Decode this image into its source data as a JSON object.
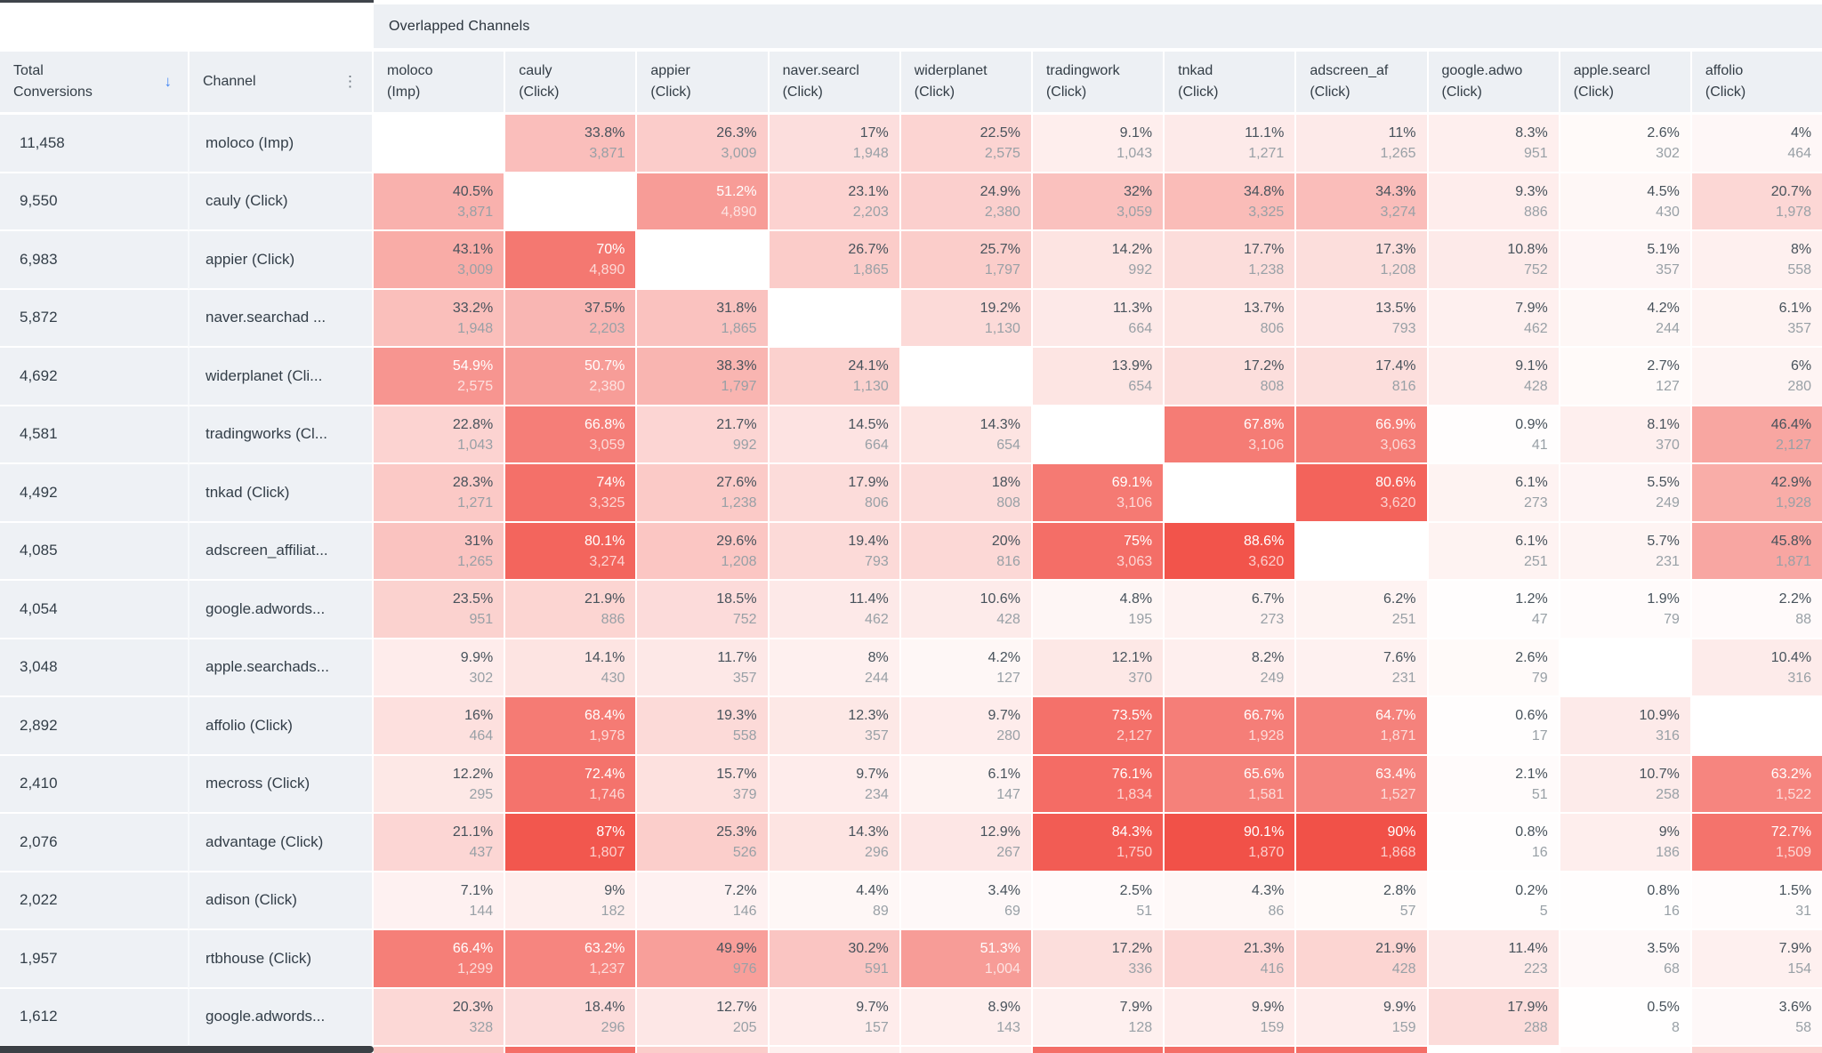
{
  "group_header": "Overlapped Channels",
  "left_header": {
    "total_line1": "Total",
    "total_line2": "Conversions",
    "sort_icon": "↓",
    "channel_label": "Channel",
    "menu_icon": "⋮"
  },
  "colors": {
    "heat_base_rgb": "240,62,52",
    "header_bg": "#edf0f4",
    "panel_bg": "#eef1f5",
    "accent_blue": "#4285f4",
    "dark_text_threshold_pct": 50
  },
  "columns": [
    {
      "line1": "moloco",
      "line2": "(Imp)"
    },
    {
      "line1": "cauly",
      "line2": "(Click)"
    },
    {
      "line1": "appier",
      "line2": "(Click)"
    },
    {
      "line1": "naver.searcl",
      "line2": "(Click)"
    },
    {
      "line1": "widerplanet",
      "line2": "(Click)"
    },
    {
      "line1": "tradingwork",
      "line2": "(Click)"
    },
    {
      "line1": "tnkad",
      "line2": "(Click)"
    },
    {
      "line1": "adscreen_af",
      "line2": "(Click)"
    },
    {
      "line1": "google.adwo",
      "line2": "(Click)"
    },
    {
      "line1": "apple.searcl",
      "line2": "(Click)"
    },
    {
      "line1": "affolio",
      "line2": "(Click)"
    }
  ],
  "rows": [
    {
      "total": "11,458",
      "channel": "moloco (Imp)",
      "cells": [
        null,
        {
          "p": "33.8%",
          "c": "3,871"
        },
        {
          "p": "26.3%",
          "c": "3,009"
        },
        {
          "p": "17%",
          "c": "1,948"
        },
        {
          "p": "22.5%",
          "c": "2,575"
        },
        {
          "p": "9.1%",
          "c": "1,043"
        },
        {
          "p": "11.1%",
          "c": "1,271"
        },
        {
          "p": "11%",
          "c": "1,265"
        },
        {
          "p": "8.3%",
          "c": "951"
        },
        {
          "p": "2.6%",
          "c": "302"
        },
        {
          "p": "4%",
          "c": "464"
        }
      ]
    },
    {
      "total": "9,550",
      "channel": "cauly (Click)",
      "cells": [
        {
          "p": "40.5%",
          "c": "3,871"
        },
        null,
        {
          "p": "51.2%",
          "c": "4,890"
        },
        {
          "p": "23.1%",
          "c": "2,203"
        },
        {
          "p": "24.9%",
          "c": "2,380"
        },
        {
          "p": "32%",
          "c": "3,059"
        },
        {
          "p": "34.8%",
          "c": "3,325"
        },
        {
          "p": "34.3%",
          "c": "3,274"
        },
        {
          "p": "9.3%",
          "c": "886"
        },
        {
          "p": "4.5%",
          "c": "430"
        },
        {
          "p": "20.7%",
          "c": "1,978"
        }
      ]
    },
    {
      "total": "6,983",
      "channel": "appier (Click)",
      "cells": [
        {
          "p": "43.1%",
          "c": "3,009"
        },
        {
          "p": "70%",
          "c": "4,890"
        },
        null,
        {
          "p": "26.7%",
          "c": "1,865"
        },
        {
          "p": "25.7%",
          "c": "1,797"
        },
        {
          "p": "14.2%",
          "c": "992"
        },
        {
          "p": "17.7%",
          "c": "1,238"
        },
        {
          "p": "17.3%",
          "c": "1,208"
        },
        {
          "p": "10.8%",
          "c": "752"
        },
        {
          "p": "5.1%",
          "c": "357"
        },
        {
          "p": "8%",
          "c": "558"
        }
      ]
    },
    {
      "total": "5,872",
      "channel": "naver.searchad ...",
      "cells": [
        {
          "p": "33.2%",
          "c": "1,948"
        },
        {
          "p": "37.5%",
          "c": "2,203"
        },
        {
          "p": "31.8%",
          "c": "1,865"
        },
        null,
        {
          "p": "19.2%",
          "c": "1,130"
        },
        {
          "p": "11.3%",
          "c": "664"
        },
        {
          "p": "13.7%",
          "c": "806"
        },
        {
          "p": "13.5%",
          "c": "793"
        },
        {
          "p": "7.9%",
          "c": "462"
        },
        {
          "p": "4.2%",
          "c": "244"
        },
        {
          "p": "6.1%",
          "c": "357"
        }
      ]
    },
    {
      "total": "4,692",
      "channel": "widerplanet (Cli...",
      "cells": [
        {
          "p": "54.9%",
          "c": "2,575"
        },
        {
          "p": "50.7%",
          "c": "2,380"
        },
        {
          "p": "38.3%",
          "c": "1,797"
        },
        {
          "p": "24.1%",
          "c": "1,130"
        },
        null,
        {
          "p": "13.9%",
          "c": "654"
        },
        {
          "p": "17.2%",
          "c": "808"
        },
        {
          "p": "17.4%",
          "c": "816"
        },
        {
          "p": "9.1%",
          "c": "428"
        },
        {
          "p": "2.7%",
          "c": "127"
        },
        {
          "p": "6%",
          "c": "280"
        }
      ]
    },
    {
      "total": "4,581",
      "channel": "tradingworks (Cl...",
      "cells": [
        {
          "p": "22.8%",
          "c": "1,043"
        },
        {
          "p": "66.8%",
          "c": "3,059"
        },
        {
          "p": "21.7%",
          "c": "992"
        },
        {
          "p": "14.5%",
          "c": "664"
        },
        {
          "p": "14.3%",
          "c": "654"
        },
        null,
        {
          "p": "67.8%",
          "c": "3,106"
        },
        {
          "p": "66.9%",
          "c": "3,063"
        },
        {
          "p": "0.9%",
          "c": "41"
        },
        {
          "p": "8.1%",
          "c": "370"
        },
        {
          "p": "46.4%",
          "c": "2,127"
        }
      ]
    },
    {
      "total": "4,492",
      "channel": "tnkad (Click)",
      "cells": [
        {
          "p": "28.3%",
          "c": "1,271"
        },
        {
          "p": "74%",
          "c": "3,325"
        },
        {
          "p": "27.6%",
          "c": "1,238"
        },
        {
          "p": "17.9%",
          "c": "806"
        },
        {
          "p": "18%",
          "c": "808"
        },
        {
          "p": "69.1%",
          "c": "3,106"
        },
        null,
        {
          "p": "80.6%",
          "c": "3,620"
        },
        {
          "p": "6.1%",
          "c": "273"
        },
        {
          "p": "5.5%",
          "c": "249"
        },
        {
          "p": "42.9%",
          "c": "1,928"
        }
      ]
    },
    {
      "total": "4,085",
      "channel": "adscreen_affiliat...",
      "cells": [
        {
          "p": "31%",
          "c": "1,265"
        },
        {
          "p": "80.1%",
          "c": "3,274"
        },
        {
          "p": "29.6%",
          "c": "1,208"
        },
        {
          "p": "19.4%",
          "c": "793"
        },
        {
          "p": "20%",
          "c": "816"
        },
        {
          "p": "75%",
          "c": "3,063"
        },
        {
          "p": "88.6%",
          "c": "3,620"
        },
        null,
        {
          "p": "6.1%",
          "c": "251"
        },
        {
          "p": "5.7%",
          "c": "231"
        },
        {
          "p": "45.8%",
          "c": "1,871"
        }
      ]
    },
    {
      "total": "4,054",
      "channel": "google.adwords...",
      "cells": [
        {
          "p": "23.5%",
          "c": "951"
        },
        {
          "p": "21.9%",
          "c": "886"
        },
        {
          "p": "18.5%",
          "c": "752"
        },
        {
          "p": "11.4%",
          "c": "462"
        },
        {
          "p": "10.6%",
          "c": "428"
        },
        {
          "p": "4.8%",
          "c": "195"
        },
        {
          "p": "6.7%",
          "c": "273"
        },
        {
          "p": "6.2%",
          "c": "251"
        },
        {
          "p": "1.2%",
          "c": "47"
        },
        {
          "p": "1.9%",
          "c": "79"
        },
        {
          "p": "2.2%",
          "c": "88"
        }
      ]
    },
    {
      "total": "3,048",
      "channel": "apple.searchads...",
      "cells": [
        {
          "p": "9.9%",
          "c": "302"
        },
        {
          "p": "14.1%",
          "c": "430"
        },
        {
          "p": "11.7%",
          "c": "357"
        },
        {
          "p": "8%",
          "c": "244"
        },
        {
          "p": "4.2%",
          "c": "127"
        },
        {
          "p": "12.1%",
          "c": "370"
        },
        {
          "p": "8.2%",
          "c": "249"
        },
        {
          "p": "7.6%",
          "c": "231"
        },
        {
          "p": "2.6%",
          "c": "79"
        },
        null,
        {
          "p": "10.4%",
          "c": "316"
        }
      ]
    },
    {
      "total": "2,892",
      "channel": "affolio (Click)",
      "cells": [
        {
          "p": "16%",
          "c": "464"
        },
        {
          "p": "68.4%",
          "c": "1,978"
        },
        {
          "p": "19.3%",
          "c": "558"
        },
        {
          "p": "12.3%",
          "c": "357"
        },
        {
          "p": "9.7%",
          "c": "280"
        },
        {
          "p": "73.5%",
          "c": "2,127"
        },
        {
          "p": "66.7%",
          "c": "1,928"
        },
        {
          "p": "64.7%",
          "c": "1,871"
        },
        {
          "p": "0.6%",
          "c": "17"
        },
        {
          "p": "10.9%",
          "c": "316"
        },
        null
      ]
    },
    {
      "total": "2,410",
      "channel": "mecross (Click)",
      "cells": [
        {
          "p": "12.2%",
          "c": "295"
        },
        {
          "p": "72.4%",
          "c": "1,746"
        },
        {
          "p": "15.7%",
          "c": "379"
        },
        {
          "p": "9.7%",
          "c": "234"
        },
        {
          "p": "6.1%",
          "c": "147"
        },
        {
          "p": "76.1%",
          "c": "1,834"
        },
        {
          "p": "65.6%",
          "c": "1,581"
        },
        {
          "p": "63.4%",
          "c": "1,527"
        },
        {
          "p": "2.1%",
          "c": "51"
        },
        {
          "p": "10.7%",
          "c": "258"
        },
        {
          "p": "63.2%",
          "c": "1,522"
        }
      ]
    },
    {
      "total": "2,076",
      "channel": "advantage (Click)",
      "cells": [
        {
          "p": "21.1%",
          "c": "437"
        },
        {
          "p": "87%",
          "c": "1,807"
        },
        {
          "p": "25.3%",
          "c": "526"
        },
        {
          "p": "14.3%",
          "c": "296"
        },
        {
          "p": "12.9%",
          "c": "267"
        },
        {
          "p": "84.3%",
          "c": "1,750"
        },
        {
          "p": "90.1%",
          "c": "1,870"
        },
        {
          "p": "90%",
          "c": "1,868"
        },
        {
          "p": "0.8%",
          "c": "16"
        },
        {
          "p": "9%",
          "c": "186"
        },
        {
          "p": "72.7%",
          "c": "1,509"
        }
      ]
    },
    {
      "total": "2,022",
      "channel": "adison (Click)",
      "cells": [
        {
          "p": "7.1%",
          "c": "144"
        },
        {
          "p": "9%",
          "c": "182"
        },
        {
          "p": "7.2%",
          "c": "146"
        },
        {
          "p": "4.4%",
          "c": "89"
        },
        {
          "p": "3.4%",
          "c": "69"
        },
        {
          "p": "2.5%",
          "c": "51"
        },
        {
          "p": "4.3%",
          "c": "86"
        },
        {
          "p": "2.8%",
          "c": "57"
        },
        {
          "p": "0.2%",
          "c": "5"
        },
        {
          "p": "0.8%",
          "c": "16"
        },
        {
          "p": "1.5%",
          "c": "31"
        }
      ]
    },
    {
      "total": "1,957",
      "channel": "rtbhouse (Click)",
      "cells": [
        {
          "p": "66.4%",
          "c": "1,299"
        },
        {
          "p": "63.2%",
          "c": "1,237"
        },
        {
          "p": "49.9%",
          "c": "976"
        },
        {
          "p": "30.2%",
          "c": "591"
        },
        {
          "p": "51.3%",
          "c": "1,004"
        },
        {
          "p": "17.2%",
          "c": "336"
        },
        {
          "p": "21.3%",
          "c": "416"
        },
        {
          "p": "21.9%",
          "c": "428"
        },
        {
          "p": "11.4%",
          "c": "223"
        },
        {
          "p": "3.5%",
          "c": "68"
        },
        {
          "p": "7.9%",
          "c": "154"
        }
      ]
    },
    {
      "total": "1,612",
      "channel": "google.adwords...",
      "cells": [
        {
          "p": "20.3%",
          "c": "328"
        },
        {
          "p": "18.4%",
          "c": "296"
        },
        {
          "p": "12.7%",
          "c": "205"
        },
        {
          "p": "9.7%",
          "c": "157"
        },
        {
          "p": "8.9%",
          "c": "143"
        },
        {
          "p": "7.9%",
          "c": "128"
        },
        {
          "p": "9.9%",
          "c": "159"
        },
        {
          "p": "9.9%",
          "c": "159"
        },
        {
          "p": "17.9%",
          "c": "288"
        },
        {
          "p": "0.5%",
          "c": "8"
        },
        {
          "p": "3.6%",
          "c": "58"
        }
      ]
    }
  ],
  "partial_row_heat_pcts": [
    "30%",
    "75%",
    "26%",
    "8%",
    "8%",
    "75%",
    "75%",
    "75%",
    "0%",
    "3%",
    "22%"
  ]
}
